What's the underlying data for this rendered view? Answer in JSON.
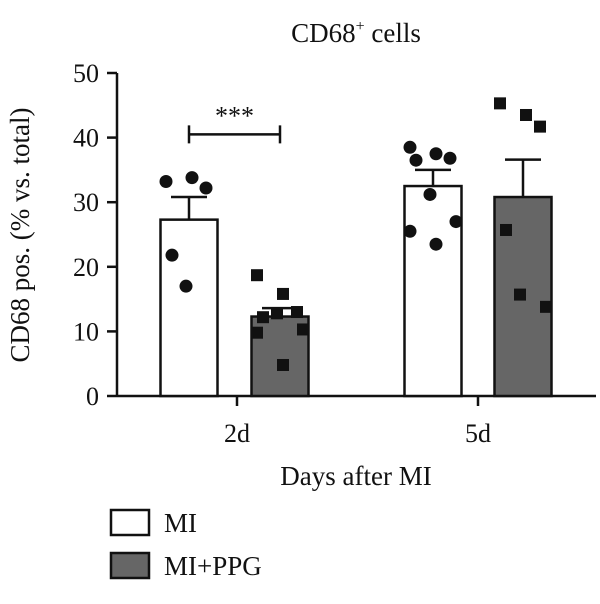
{
  "chart_data": {
    "type": "bar",
    "title": "CD68",
    "title_superscript": "+",
    "title_suffix": " cells",
    "xlabel": "Days after MI",
    "ylabel": "CD68 pos. (% vs. total)",
    "ylim": [
      0,
      50
    ],
    "yticks": [
      "0",
      "10",
      "20",
      "30",
      "40",
      "50"
    ],
    "categories": [
      "2d",
      "5d"
    ],
    "grid": false,
    "legend_position": "bottom-left",
    "series": [
      {
        "name": "MI",
        "fill": "#ffffff",
        "marker": "circle",
        "values": [
          27.3,
          32.5
        ],
        "errors": [
          3.5,
          2.5
        ],
        "points": [
          [
            33.2,
            33.8,
            32.2,
            21.8,
            17.0
          ],
          [
            38.5,
            37.5,
            36.8,
            36.5,
            31.2,
            27.0,
            25.5,
            23.5
          ]
        ]
      },
      {
        "name": "MI+PPG",
        "fill": "#666666",
        "marker": "square",
        "values": [
          12.3,
          30.8
        ],
        "errors": [
          1.3,
          5.8
        ],
        "points": [
          [
            18.7,
            15.8,
            13.0,
            12.2,
            12.8,
            10.3,
            9.8,
            4.8
          ],
          [
            45.3,
            43.5,
            41.7,
            25.7,
            15.7,
            13.8
          ]
        ]
      }
    ],
    "annotations": [
      {
        "text": "***",
        "between": [
          "MI",
          "MI+PPG"
        ],
        "category": "2d",
        "y": 40.5
      }
    ]
  }
}
